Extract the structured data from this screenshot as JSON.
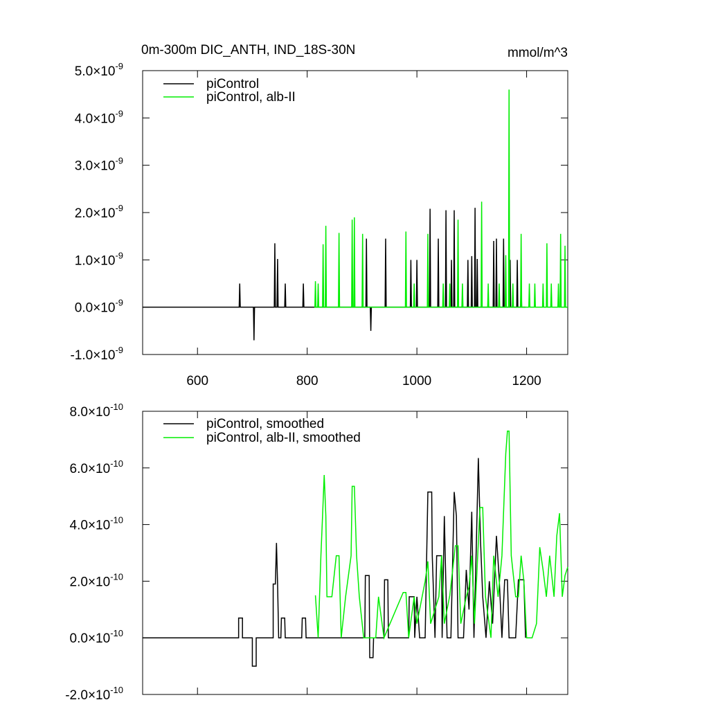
{
  "chart_data": [
    {
      "type": "line",
      "title": "0m-300m DIC_ANTH, IND_18S-30N",
      "units": "mmol/m^3",
      "xlim": [
        500,
        1275
      ],
      "xticks": [
        600,
        800,
        1000,
        1200
      ],
      "ylim": [
        -1e-09,
        5e-09
      ],
      "yticks": [
        {
          "value": -1e-09,
          "label": "-1.0×10",
          "exp": "-9"
        },
        {
          "value": 0,
          "label": "0.0×10",
          "exp": "-9"
        },
        {
          "value": 1e-09,
          "label": "1.0×10",
          "exp": "-9"
        },
        {
          "value": 2e-09,
          "label": "2.0×10",
          "exp": "-9"
        },
        {
          "value": 3e-09,
          "label": "3.0×10",
          "exp": "-9"
        },
        {
          "value": 4e-09,
          "label": "4.0×10",
          "exp": "-9"
        },
        {
          "value": 5e-09,
          "label": "5.0×10",
          "exp": "-9"
        }
      ],
      "series": [
        {
          "name": "piControl",
          "color": "#000000",
          "x": [
            500,
            676,
            677,
            678,
            702,
            703,
            704,
            740,
            741,
            742,
            745,
            746,
            747,
            759,
            760,
            761,
            792,
            793,
            794,
            907,
            908,
            909,
            915,
            916,
            917,
            942,
            943,
            944,
            988,
            989,
            990,
            999,
            1000,
            1001,
            1023,
            1024,
            1025,
            1038,
            1039,
            1040,
            1052,
            1053,
            1054,
            1062,
            1063,
            1064,
            1067,
            1068,
            1069,
            1092,
            1093,
            1094,
            1099,
            1100,
            1101,
            1105,
            1106,
            1107,
            1109,
            1110,
            1111,
            1139,
            1140,
            1141,
            1144,
            1145,
            1146,
            1157,
            1158,
            1159,
            1169,
            1170,
            1171,
            1182,
            1183,
            1184,
            1189,
            1190,
            1191,
            1198
          ],
          "values": [
            0,
            0,
            5e-10,
            0,
            0,
            -7e-10,
            0,
            0,
            1.35e-09,
            0,
            0,
            1.02e-09,
            0,
            0,
            5e-10,
            0,
            0,
            5e-10,
            0,
            0,
            1.45e-09,
            0,
            0,
            -5e-10,
            0,
            0,
            1.45e-09,
            0,
            0,
            1e-09,
            0,
            0,
            1e-09,
            0,
            0,
            2.08e-09,
            0,
            0,
            1.45e-09,
            0,
            0,
            2.05e-09,
            0,
            0,
            1e-09,
            0,
            0,
            2.05e-09,
            0,
            0,
            1e-09,
            0,
            0,
            1.08e-09,
            0,
            0,
            2.1e-09,
            0,
            0,
            1.02e-09,
            0,
            0,
            1.4e-09,
            0,
            0,
            1.45e-09,
            0,
            0,
            1.45e-09,
            0,
            0,
            1e-09,
            0,
            0,
            1e-09,
            0,
            0,
            5.5e-10,
            0,
            0
          ]
        },
        {
          "name": "piControl, alb-II",
          "color": "#00ee00",
          "x": [
            813,
            814,
            815,
            816,
            819,
            820,
            821,
            828,
            829,
            830,
            833,
            834,
            835,
            857,
            858,
            859,
            881,
            882,
            883,
            885,
            886,
            887,
            900,
            901,
            902,
            979,
            980,
            981,
            994,
            995,
            996,
            1019,
            1020,
            1021,
            1047,
            1048,
            1049,
            1059,
            1060,
            1061,
            1074,
            1075,
            1076,
            1082,
            1083,
            1084,
            1117,
            1118,
            1119,
            1129,
            1130,
            1131,
            1149,
            1150,
            1151,
            1161,
            1162,
            1163,
            1167,
            1168,
            1169,
            1174,
            1175,
            1176,
            1189,
            1190,
            1191,
            1204,
            1205,
            1206,
            1214,
            1215,
            1216,
            1229,
            1230,
            1231,
            1236,
            1237,
            1238,
            1244,
            1245,
            1246,
            1257,
            1258,
            1259,
            1261,
            1262,
            1263,
            1269,
            1270,
            1271,
            1275
          ],
          "values": [
            0,
            0,
            5.5e-10,
            0,
            0,
            5e-10,
            0,
            0,
            1.33e-09,
            0,
            0,
            1.72e-09,
            0,
            0,
            1.57e-09,
            0,
            0,
            1.85e-09,
            0,
            0,
            1.9e-09,
            0,
            0,
            1.55e-09,
            0,
            0,
            1.6e-09,
            0,
            0,
            5e-10,
            0,
            0,
            1.55e-09,
            0,
            0,
            5e-10,
            0,
            0,
            5e-10,
            0,
            0,
            1.85e-09,
            0,
            0,
            5e-10,
            0,
            0,
            2.23e-09,
            0,
            0,
            5e-10,
            0,
            0,
            5e-10,
            0,
            0,
            1.1e-09,
            0,
            0,
            4.6e-09,
            0,
            0,
            5e-10,
            0,
            0,
            1.55e-09,
            0,
            0,
            5e-10,
            0,
            0,
            5e-10,
            0,
            0,
            5e-10,
            0,
            0,
            1.35e-09,
            0,
            0,
            5e-10,
            0,
            0,
            5e-10,
            0,
            0,
            1.55e-09,
            0,
            0,
            1.3e-09,
            0,
            0
          ]
        }
      ]
    },
    {
      "type": "line",
      "xlim": [
        500,
        1275
      ],
      "xticks": [
        600,
        800,
        1000,
        1200
      ],
      "ylim": [
        -2e-10,
        8e-10
      ],
      "yticks": [
        {
          "value": -2e-10,
          "label": "-2.0×10",
          "exp": "-10"
        },
        {
          "value": 0,
          "label": "0.0×10",
          "exp": "-10"
        },
        {
          "value": 2e-10,
          "label": "2.0×10",
          "exp": "-10"
        },
        {
          "value": 4e-10,
          "label": "4.0×10",
          "exp": "-10"
        },
        {
          "value": 6e-10,
          "label": "6.0×10",
          "exp": "-10"
        },
        {
          "value": 8e-10,
          "label": "8.0×10",
          "exp": "-10"
        }
      ],
      "series": [
        {
          "name": "piControl, smoothed",
          "color": "#000000",
          "x": [
            500,
            675,
            675,
            682,
            682,
            700,
            700,
            707,
            707,
            738,
            738,
            742,
            744,
            746,
            748,
            752,
            753,
            759,
            760,
            790,
            791,
            797,
            798,
            905,
            906,
            913,
            914,
            920,
            921,
            940,
            941,
            947,
            948,
            985,
            986,
            995,
            996,
            1000,
            1005,
            1015,
            1020,
            1027,
            1028,
            1033,
            1036,
            1045,
            1046,
            1050,
            1055,
            1062,
            1068,
            1072,
            1075,
            1085,
            1090,
            1095,
            1100,
            1104,
            1108,
            1112,
            1116,
            1120,
            1126,
            1132,
            1138,
            1145,
            1150,
            1155,
            1160,
            1165,
            1168,
            1180,
            1185,
            1195,
            1198
          ],
          "values": [
            0,
            0,
            7e-11,
            7e-11,
            0,
            0,
            -1e-10,
            -1e-10,
            0,
            0,
            1.9e-10,
            1.9e-10,
            3.35e-10,
            1.9e-10,
            0,
            0,
            7e-11,
            7e-11,
            0,
            0,
            7e-11,
            7e-11,
            0,
            0,
            2.2e-10,
            2.2e-10,
            -7e-11,
            -7e-11,
            0,
            0,
            2.05e-10,
            2.05e-10,
            0,
            0,
            1.45e-10,
            1.45e-10,
            0,
            1.45e-10,
            0,
            0,
            5.15e-10,
            5.15e-10,
            2.9e-10,
            0,
            2.9e-10,
            2.9e-10,
            0,
            4.3e-10,
            0,
            0,
            5.15e-10,
            4.3e-10,
            0,
            0,
            2.4e-10,
            1e-10,
            4.45e-10,
            0,
            3e-10,
            6.35e-10,
            3.4e-10,
            1.45e-10,
            0,
            2e-10,
            5e-11,
            3.6e-10,
            2.1e-10,
            0,
            2.05e-10,
            2.05e-10,
            0,
            0,
            2.05e-10,
            2.05e-10,
            0
          ]
        },
        {
          "name": "piControl, alb-II, smoothed",
          "color": "#00ee00",
          "x": [
            815,
            820,
            825,
            828,
            831,
            834,
            836,
            845,
            853,
            858,
            862,
            870,
            880,
            882,
            886,
            890,
            895,
            903,
            925,
            930,
            940,
            975,
            980,
            985,
            995,
            1000,
            1015,
            1020,
            1025,
            1040,
            1045,
            1050,
            1060,
            1070,
            1075,
            1080,
            1090,
            1095,
            1100,
            1105,
            1115,
            1120,
            1125,
            1135,
            1140,
            1148,
            1155,
            1162,
            1165,
            1168,
            1172,
            1180,
            1185,
            1190,
            1195,
            1200,
            1210,
            1218,
            1224,
            1230,
            1236,
            1242,
            1250,
            1255,
            1260,
            1265,
            1270,
            1275
          ],
          "values": [
            1.5e-10,
            0,
            2.9e-10,
            4.3e-10,
            5.75e-10,
            4.3e-10,
            1.45e-10,
            1.45e-10,
            2.9e-10,
            2.9e-10,
            0,
            1.45e-10,
            2.9e-10,
            5.35e-10,
            5.35e-10,
            2.9e-10,
            1.45e-10,
            0,
            0,
            1.45e-10,
            0,
            1.6e-10,
            1.6e-10,
            0,
            1.45e-10,
            5e-11,
            2e-10,
            2.7e-10,
            5e-11,
            1.45e-10,
            2.9e-10,
            5e-11,
            1.5e-10,
            3.25e-10,
            3.25e-10,
            5e-11,
            1.45e-10,
            1.8e-10,
            2.9e-10,
            5e-11,
            4.6e-10,
            4.6e-10,
            1.45e-10,
            0,
            2.9e-10,
            1.45e-10,
            2.9e-10,
            6.5e-10,
            7.3e-10,
            7.3e-10,
            2.9e-10,
            1.45e-10,
            1.45e-10,
            2.9e-10,
            2e-10,
            0,
            0,
            5e-11,
            3.2e-10,
            2.4e-10,
            1.45e-10,
            2.9e-10,
            1.45e-10,
            3.6e-10,
            4.4e-10,
            1.45e-10,
            2.2e-10,
            2.5e-10
          ]
        }
      ]
    }
  ]
}
